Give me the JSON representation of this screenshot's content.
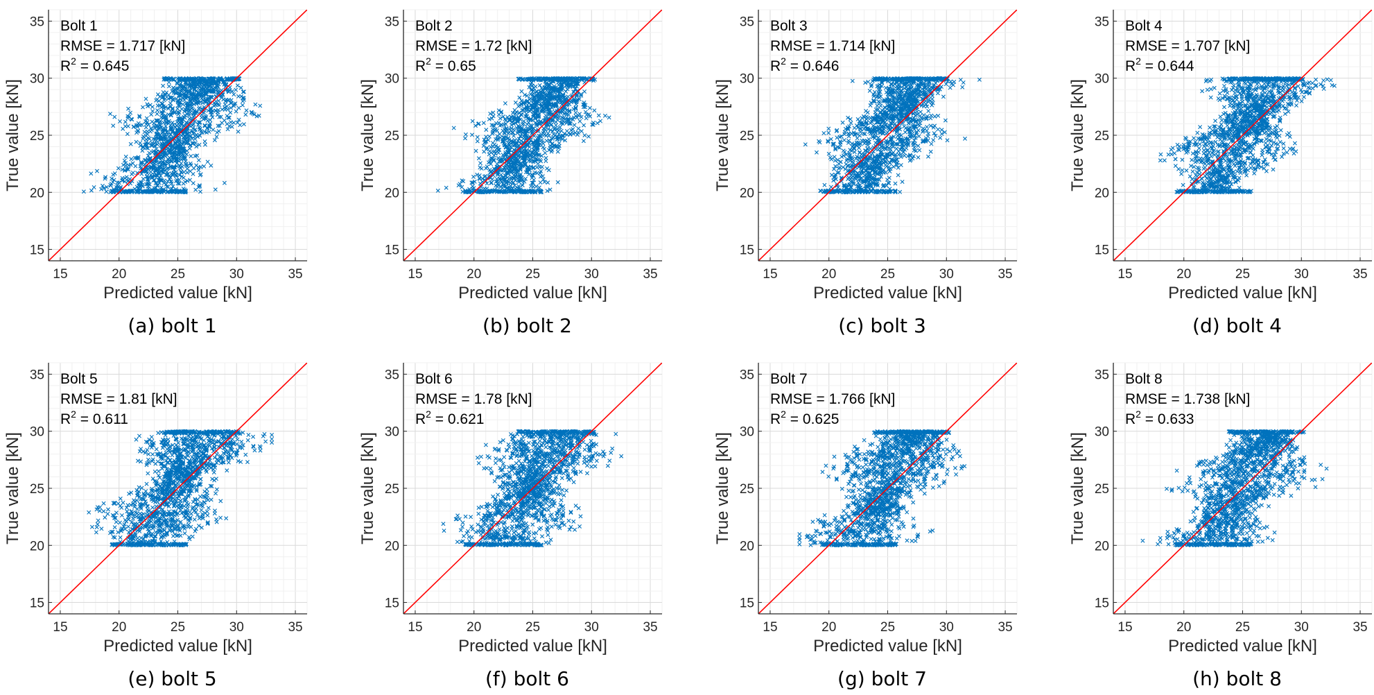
{
  "chart_data": [
    {
      "type": "scatter",
      "caption": "(a) bolt 1",
      "annotation": {
        "bolt": "Bolt 1",
        "rmse": "RMSE = 1.717 [kN]",
        "r2_label": "R",
        "r2_sup": "2",
        "r2_value": " = 0.645"
      },
      "xlabel": "Predicted value [kN]",
      "ylabel": "True value [kN]",
      "xlim": [
        14,
        36
      ],
      "ylim": [
        14,
        36
      ],
      "xticks": [
        "15",
        "20",
        "25",
        "30",
        "35"
      ],
      "yticks": [
        "15",
        "20",
        "25",
        "30",
        "35"
      ],
      "grid": true,
      "reference_line": "y = x",
      "point_color": "#0072BD",
      "line_color": "#FF0000",
      "cloud": {
        "true_range": [
          20,
          30
        ],
        "pred_range": [
          17,
          32
        ],
        "n_points": "dense"
      }
    },
    {
      "type": "scatter",
      "caption": "(b) bolt 2",
      "annotation": {
        "bolt": "Bolt 2",
        "rmse": "RMSE = 1.72 [kN]",
        "r2_label": "R",
        "r2_sup": "2",
        "r2_value": " = 0.65"
      },
      "xlabel": "Predicted value [kN]",
      "ylabel": "True value [kN]",
      "xlim": [
        14,
        36
      ],
      "ylim": [
        14,
        36
      ],
      "xticks": [
        "15",
        "20",
        "25",
        "30",
        "35"
      ],
      "yticks": [
        "15",
        "20",
        "25",
        "30",
        "35"
      ],
      "grid": true,
      "reference_line": "y = x",
      "point_color": "#0072BD",
      "line_color": "#FF0000",
      "cloud": {
        "true_range": [
          20,
          30
        ],
        "pred_range": [
          16.5,
          31.5
        ],
        "n_points": "dense"
      }
    },
    {
      "type": "scatter",
      "caption": "(c) bolt 3",
      "annotation": {
        "bolt": "Bolt 3",
        "rmse": "RMSE = 1.714 [kN]",
        "r2_label": "R",
        "r2_sup": "2",
        "r2_value": " = 0.646"
      },
      "xlabel": "Predicted value [kN]",
      "ylabel": "True value [kN]",
      "xlim": [
        14,
        36
      ],
      "ylim": [
        14,
        36
      ],
      "xticks": [
        "15",
        "20",
        "25",
        "30",
        "35"
      ],
      "yticks": [
        "15",
        "20",
        "25",
        "30",
        "35"
      ],
      "grid": true,
      "reference_line": "y = x",
      "point_color": "#0072BD",
      "line_color": "#FF0000",
      "cloud": {
        "true_range": [
          20,
          30
        ],
        "pred_range": [
          18,
          33
        ],
        "n_points": "dense"
      }
    },
    {
      "type": "scatter",
      "caption": "(d) bolt 4",
      "annotation": {
        "bolt": "Bolt 4",
        "rmse": "RMSE = 1.707 [kN]",
        "r2_label": "R",
        "r2_sup": "2",
        "r2_value": " = 0.644"
      },
      "xlabel": "Predicted value [kN]",
      "ylabel": "True value [kN]",
      "xlim": [
        14,
        36
      ],
      "ylim": [
        14,
        36
      ],
      "xticks": [
        "15",
        "20",
        "25",
        "30",
        "35"
      ],
      "yticks": [
        "15",
        "20",
        "25",
        "30",
        "35"
      ],
      "grid": true,
      "reference_line": "y = x",
      "point_color": "#0072BD",
      "line_color": "#FF0000",
      "cloud": {
        "true_range": [
          20,
          30
        ],
        "pred_range": [
          18,
          33
        ],
        "n_points": "dense"
      }
    },
    {
      "type": "scatter",
      "caption": "(e) bolt 5",
      "annotation": {
        "bolt": "Bolt 5",
        "rmse": "RMSE = 1.81 [kN]",
        "r2_label": "R",
        "r2_sup": "2",
        "r2_value": " = 0.611"
      },
      "xlabel": "Predicted value [kN]",
      "ylabel": "True value [kN]",
      "xlim": [
        14,
        36
      ],
      "ylim": [
        14,
        36
      ],
      "xticks": [
        "15",
        "20",
        "25",
        "30",
        "35"
      ],
      "yticks": [
        "15",
        "20",
        "25",
        "30",
        "35"
      ],
      "grid": true,
      "reference_line": "y = x",
      "point_color": "#0072BD",
      "line_color": "#FF0000",
      "cloud": {
        "true_range": [
          20,
          30
        ],
        "pred_range": [
          17,
          33
        ],
        "n_points": "dense"
      }
    },
    {
      "type": "scatter",
      "caption": "(f) bolt 6",
      "annotation": {
        "bolt": "Bolt 6",
        "rmse": "RMSE = 1.78 [kN]",
        "r2_label": "R",
        "r2_sup": "2",
        "r2_value": " = 0.621"
      },
      "xlabel": "Predicted value [kN]",
      "ylabel": "True value [kN]",
      "xlim": [
        14,
        36
      ],
      "ylim": [
        14,
        36
      ],
      "xticks": [
        "15",
        "20",
        "25",
        "30",
        "35"
      ],
      "yticks": [
        "15",
        "20",
        "25",
        "30",
        "35"
      ],
      "grid": true,
      "reference_line": "y = x",
      "point_color": "#0072BD",
      "line_color": "#FF0000",
      "cloud": {
        "true_range": [
          20,
          30
        ],
        "pred_range": [
          16.5,
          34
        ],
        "n_points": "dense"
      }
    },
    {
      "type": "scatter",
      "caption": "(g) bolt 7",
      "annotation": {
        "bolt": "Bolt 7",
        "rmse": "RMSE = 1.766 [kN]",
        "r2_label": "R",
        "r2_sup": "2",
        "r2_value": " = 0.625"
      },
      "xlabel": "Predicted value [kN]",
      "ylabel": "True value [kN]",
      "xlim": [
        14,
        36
      ],
      "ylim": [
        14,
        36
      ],
      "xticks": [
        "15",
        "20",
        "25",
        "30",
        "35"
      ],
      "yticks": [
        "15",
        "20",
        "25",
        "30",
        "35"
      ],
      "grid": true,
      "reference_line": "y = x",
      "point_color": "#0072BD",
      "line_color": "#FF0000",
      "cloud": {
        "true_range": [
          20,
          30
        ],
        "pred_range": [
          17.5,
          33.5
        ],
        "n_points": "dense"
      }
    },
    {
      "type": "scatter",
      "caption": "(h) bolt 8",
      "annotation": {
        "bolt": "Bolt 8",
        "rmse": "RMSE = 1.738 [kN]",
        "r2_label": "R",
        "r2_sup": "2",
        "r2_value": " = 0.633"
      },
      "xlabel": "Predicted value [kN]",
      "ylabel": "True value [kN]",
      "xlim": [
        14,
        36
      ],
      "ylim": [
        14,
        36
      ],
      "xticks": [
        "15",
        "20",
        "25",
        "30",
        "35"
      ],
      "yticks": [
        "15",
        "20",
        "25",
        "30",
        "35"
      ],
      "grid": true,
      "reference_line": "y = x",
      "point_color": "#0072BD",
      "line_color": "#FF0000",
      "cloud": {
        "true_range": [
          20,
          30
        ],
        "pred_range": [
          16.5,
          32.5
        ],
        "n_points": "dense"
      }
    }
  ]
}
